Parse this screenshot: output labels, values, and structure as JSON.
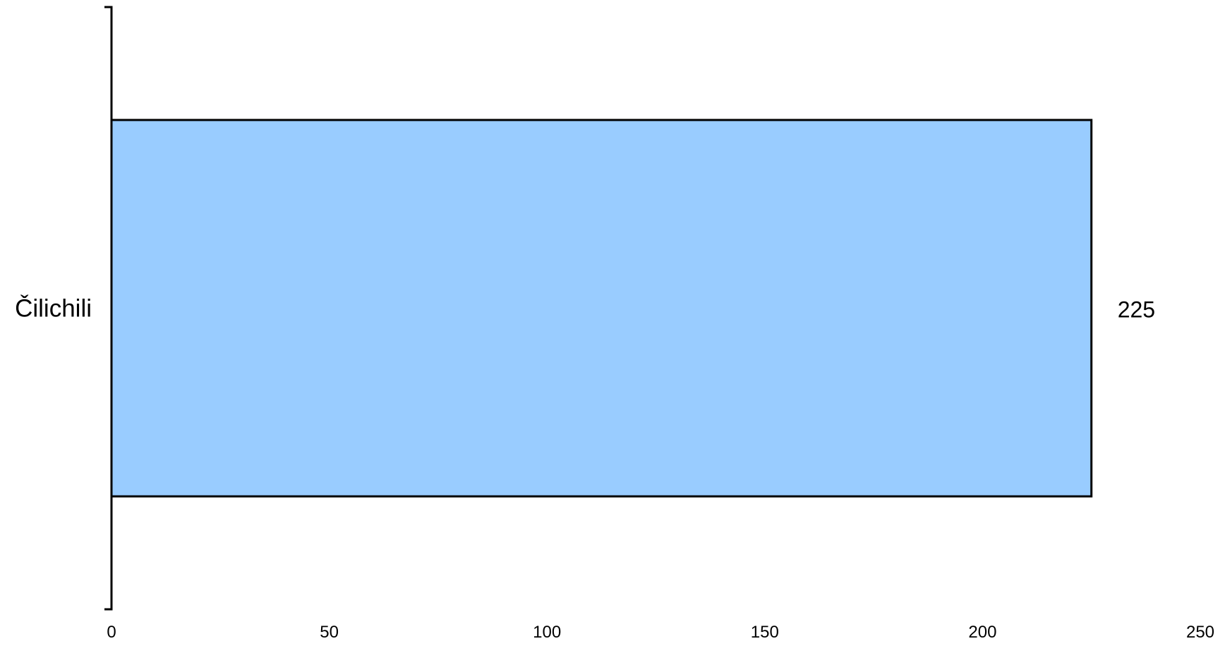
{
  "chart_data": {
    "type": "bar",
    "orientation": "horizontal",
    "categories": [
      "Čilichili"
    ],
    "values": [
      225
    ],
    "data_labels": [
      "225"
    ],
    "title": "",
    "xlabel": "",
    "ylabel": "",
    "xlim": [
      0,
      250
    ],
    "x_ticks": [
      "0",
      "50",
      "100",
      "150",
      "200",
      "250"
    ],
    "grid": false,
    "legend": "none",
    "colors": {
      "bar_fill": "#99ccff",
      "bar_stroke": "#000000",
      "axis": "#000000",
      "background": "#ffffff"
    }
  }
}
